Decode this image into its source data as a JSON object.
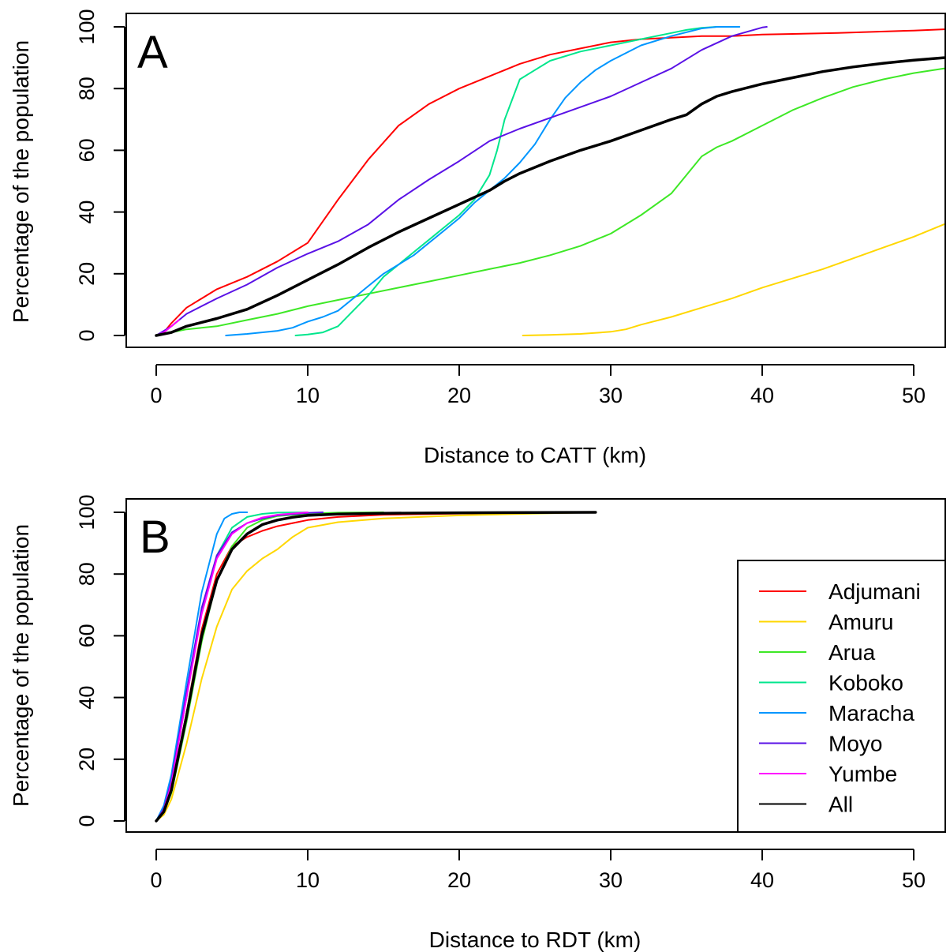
{
  "figure": {
    "legend": {
      "placement": "right",
      "entries": [
        {
          "label": "Adjumani",
          "color": "#ff0000"
        },
        {
          "label": "Amuru",
          "color": "#ffd700"
        },
        {
          "label": "Arua",
          "color": "#3ee826"
        },
        {
          "label": "Koboko",
          "color": "#00e68c"
        },
        {
          "label": "Maracha",
          "color": "#0096ff"
        },
        {
          "label": "Moyo",
          "color": "#5a12e6"
        },
        {
          "label": "Yumbe",
          "color": "#ff00ff"
        },
        {
          "label": "All",
          "color": "#000000"
        }
      ]
    }
  },
  "chart_data": [
    {
      "panel": "A",
      "type": "line",
      "xlabel": "Distance to CATT (km)",
      "ylabel": "Percentage of the population",
      "xlim": [
        0,
        52
      ],
      "ylim": [
        0,
        100
      ],
      "xticks": [
        0,
        10,
        20,
        30,
        40,
        50
      ],
      "yticks": [
        0,
        20,
        40,
        60,
        80,
        100
      ],
      "grid": false,
      "series": [
        {
          "name": "Adjumani",
          "color": "#ff0000",
          "width": 2,
          "x": [
            0,
            0.5,
            1,
            2,
            3,
            4,
            6,
            8,
            10,
            12,
            14,
            16,
            18,
            20,
            22,
            24,
            26,
            28,
            30,
            32,
            34,
            36,
            38,
            40,
            45,
            50,
            52
          ],
          "y": [
            0,
            1,
            4,
            9,
            12,
            15,
            19,
            24,
            30,
            44,
            57,
            68,
            75,
            80,
            84,
            88,
            91,
            93,
            95,
            96,
            96.5,
            97,
            97,
            97.5,
            98,
            98.8,
            99.2
          ]
        },
        {
          "name": "Amuru",
          "color": "#ffd700",
          "width": 2,
          "x": [
            24.2,
            26,
            28,
            30,
            31,
            32,
            34,
            36,
            38,
            40,
            42,
            44,
            46,
            48,
            50,
            52
          ],
          "y": [
            0,
            0.2,
            0.5,
            1.2,
            2,
            3.5,
            6,
            9,
            12,
            15.5,
            18.5,
            21.5,
            25,
            28.5,
            32,
            36
          ]
        },
        {
          "name": "Arua",
          "color": "#3ee826",
          "width": 2,
          "x": [
            0,
            2,
            4,
            6,
            8,
            10,
            12,
            14,
            16,
            18,
            20,
            22,
            24,
            26,
            28,
            30,
            32,
            34,
            35,
            36,
            37,
            38,
            40,
            42,
            44,
            46,
            48,
            50,
            52
          ],
          "y": [
            0,
            2,
            3,
            5,
            7,
            9.5,
            11.5,
            13.5,
            15.5,
            17.5,
            19.5,
            21.5,
            23.5,
            26,
            29,
            33,
            39,
            46,
            52,
            58,
            61,
            63,
            68,
            73,
            77,
            80.5,
            83,
            85,
            86.5
          ]
        },
        {
          "name": "Koboko",
          "color": "#00e68c",
          "width": 2,
          "x": [
            9.2,
            10,
            11,
            12,
            13,
            14,
            15,
            16,
            17,
            18,
            19,
            20,
            21,
            22,
            22.5,
            23,
            24,
            25,
            26,
            28,
            30,
            32,
            34,
            35,
            36,
            37
          ],
          "y": [
            0,
            0.3,
            1,
            3,
            8,
            13,
            19,
            23,
            27,
            31,
            35,
            39,
            44,
            52,
            60,
            70,
            83,
            86,
            89,
            92,
            94,
            96,
            98,
            99,
            99.7,
            100
          ]
        },
        {
          "name": "Maracha",
          "color": "#0096ff",
          "width": 2,
          "x": [
            4.6,
            6,
            8,
            9,
            10,
            11,
            12,
            13,
            14,
            15,
            16,
            17,
            18,
            19,
            20,
            21,
            22,
            23,
            24,
            25,
            26,
            27,
            28,
            29,
            30,
            32,
            34,
            36,
            37,
            38.5
          ],
          "y": [
            0,
            0.5,
            1.5,
            2.5,
            4.5,
            6,
            8,
            12,
            16,
            20,
            23,
            26,
            30,
            34,
            38,
            43,
            47,
            51,
            56,
            62,
            70,
            77,
            82,
            86,
            89,
            94,
            97,
            99.5,
            100,
            100
          ]
        },
        {
          "name": "Moyo",
          "color": "#5a12e6",
          "width": 2,
          "x": [
            0,
            1,
            2,
            4,
            6,
            8,
            10,
            12,
            14,
            16,
            18,
            20,
            22,
            24,
            26,
            28,
            30,
            32,
            34,
            36,
            38,
            40,
            40.3
          ],
          "y": [
            0,
            3,
            7,
            12,
            16.5,
            22,
            26.5,
            30.5,
            36,
            44,
            50.5,
            56.5,
            63,
            67,
            70.5,
            74,
            77.5,
            82,
            86.5,
            92.5,
            97,
            99.8,
            100
          ]
        },
        {
          "name": "Yumbe",
          "color": "#ff00ff",
          "width": 2,
          "x": [
            0,
            0.5,
            1,
            1.5
          ],
          "y": [
            0,
            1,
            3,
            5
          ]
        },
        {
          "name": "All",
          "color": "#000000",
          "width": 3.5,
          "x": [
            0,
            1,
            2,
            4,
            6,
            8,
            10,
            12,
            14,
            16,
            18,
            20,
            22,
            23,
            24,
            26,
            28,
            30,
            32,
            34,
            35,
            36,
            37,
            38,
            40,
            42,
            44,
            46,
            48,
            50,
            52
          ],
          "y": [
            0,
            1,
            3,
            5.5,
            8.5,
            13,
            18,
            23,
            28.5,
            33.5,
            38,
            42.5,
            47,
            50,
            52.5,
            56.5,
            60,
            63,
            66.5,
            70,
            71.5,
            75,
            77.5,
            79,
            81.5,
            83.5,
            85.5,
            87,
            88.2,
            89.2,
            90
          ]
        }
      ]
    },
    {
      "panel": "B",
      "type": "line",
      "xlabel": "Distance to RDT (km)",
      "ylabel": "Percentage of the population",
      "xlim": [
        0,
        52
      ],
      "ylim": [
        0,
        100
      ],
      "xticks": [
        0,
        10,
        20,
        30,
        40,
        50
      ],
      "yticks": [
        0,
        20,
        40,
        60,
        80,
        100
      ],
      "grid": false,
      "series": [
        {
          "name": "Adjumani",
          "color": "#ff0000",
          "width": 2,
          "x": [
            0,
            0.5,
            1,
            2,
            3,
            4,
            5,
            6,
            7,
            8,
            10,
            12,
            15,
            20,
            25,
            29
          ],
          "y": [
            0,
            3,
            10,
            35,
            62,
            80,
            89,
            92,
            94,
            95.5,
            97.5,
            98.5,
            99.2,
            99.6,
            99.9,
            100
          ]
        },
        {
          "name": "Amuru",
          "color": "#ffd700",
          "width": 2,
          "x": [
            0,
            0.5,
            1,
            2,
            3,
            4,
            5,
            6,
            7,
            8,
            9,
            10,
            12,
            15,
            20,
            25,
            29
          ],
          "y": [
            0,
            2,
            7,
            25,
            46,
            63,
            75,
            81,
            85,
            88,
            92,
            95,
            96.8,
            98,
            99,
            99.6,
            100
          ]
        },
        {
          "name": "Arua",
          "color": "#3ee826",
          "width": 2,
          "x": [
            0,
            0.5,
            1,
            2,
            3,
            4,
            5,
            6,
            7,
            8,
            10,
            12,
            15
          ],
          "y": [
            0,
            3,
            9,
            32,
            58,
            78,
            89,
            95,
            97.5,
            98.8,
            99.6,
            99.9,
            100
          ]
        },
        {
          "name": "Koboko",
          "color": "#00e68c",
          "width": 2,
          "x": [
            0,
            0.5,
            1,
            2,
            3,
            4,
            5,
            6,
            7,
            8,
            10
          ],
          "y": [
            0,
            4,
            13,
            40,
            68,
            86,
            95,
            98.5,
            99.5,
            99.9,
            100
          ]
        },
        {
          "name": "Maracha",
          "color": "#0096ff",
          "width": 2,
          "x": [
            0,
            0.5,
            1,
            2,
            3,
            4,
            4.5,
            5,
            5.5,
            6
          ],
          "y": [
            0,
            5,
            15,
            45,
            74,
            93,
            98,
            99.5,
            100,
            100
          ]
        },
        {
          "name": "Moyo",
          "color": "#5a12e6",
          "width": 2,
          "x": [
            0,
            0.5,
            1,
            2,
            3,
            4,
            5,
            6,
            7,
            8,
            10,
            11
          ],
          "y": [
            0,
            4,
            13,
            42,
            69,
            86,
            93.5,
            96.5,
            98,
            99,
            99.8,
            100
          ]
        },
        {
          "name": "Yumbe",
          "color": "#ff00ff",
          "width": 2,
          "x": [
            0,
            0.5,
            1,
            2,
            3,
            4,
            5,
            6,
            7,
            8,
            10
          ],
          "y": [
            0,
            3.5,
            12,
            40,
            67,
            85,
            93,
            96.5,
            98.3,
            99.2,
            100
          ]
        },
        {
          "name": "All",
          "color": "#000000",
          "width": 3.5,
          "x": [
            0,
            0.5,
            1,
            2,
            3,
            4,
            5,
            6,
            7,
            8,
            9,
            10,
            12,
            15,
            20,
            25,
            29
          ],
          "y": [
            0,
            3,
            10,
            34,
            60,
            78,
            88,
            93,
            96,
            97.5,
            98.4,
            99,
            99.4,
            99.7,
            99.85,
            99.95,
            100
          ]
        }
      ]
    }
  ]
}
